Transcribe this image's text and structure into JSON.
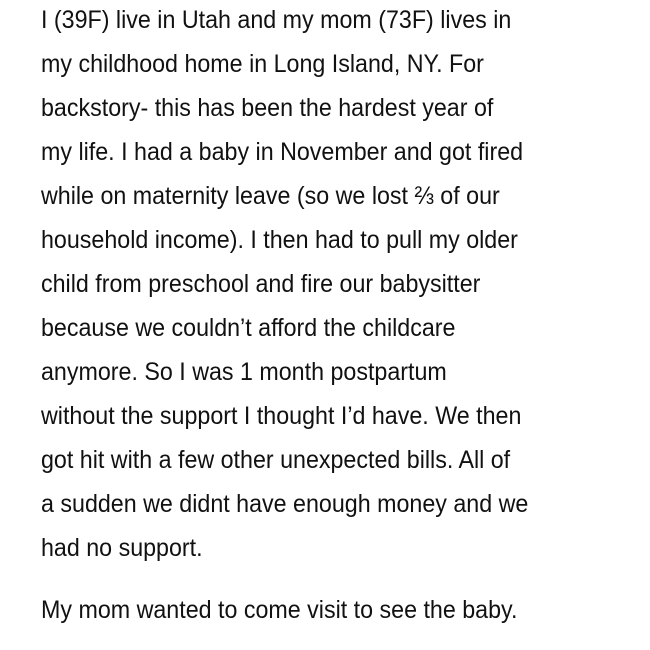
{
  "paragraphs": [
    {
      "lines": [
        "I (39F) live in Utah and my mom (73F) lives in",
        "my childhood home in Long Island, NY. For",
        "backstory- this has been the hardest year of",
        "my life. I had a baby in November and got fired",
        "while on maternity leave (so we lost ⅔ of our",
        "household income). I then had to pull my older",
        "child from preschool and fire our babysitter",
        "because we couldn’t afford the childcare",
        "anymore. So I was 1 month postpartum",
        "without the support I thought I’d have. We then",
        "got hit with a few other unexpected bills. All of",
        "a sudden we didnt have enough money and we",
        "had no support."
      ]
    },
    {
      "lines": [
        "My mom wanted to come visit to see the baby."
      ]
    }
  ]
}
